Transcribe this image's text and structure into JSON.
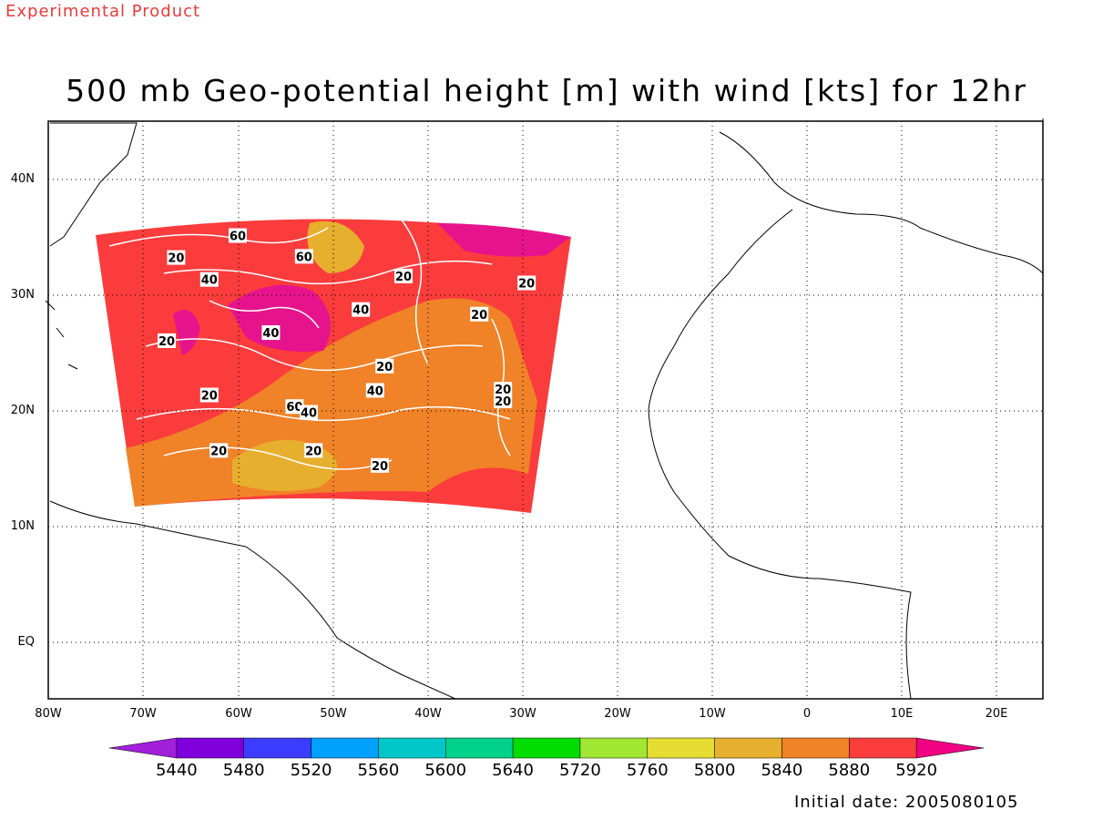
{
  "header": {
    "tag": "Experimental Product",
    "title": "500 mb Geo-potential height [m] with wind [kts] for 12hr"
  },
  "map": {
    "lat_labels": [
      "40N",
      "30N",
      "20N",
      "10N",
      "EQ"
    ],
    "lon_labels": [
      "80W",
      "70W",
      "60W",
      "50W",
      "40W",
      "30W",
      "20W",
      "10W",
      "0",
      "10E",
      "20E"
    ],
    "grid": true,
    "wind_contour_labels": [
      {
        "text": "20",
        "x": -66.5,
        "y": 33.2
      },
      {
        "text": "60",
        "x": -60.0,
        "y": 35.1
      },
      {
        "text": "60",
        "x": -53.0,
        "y": 33.3
      },
      {
        "text": "40",
        "x": -63.0,
        "y": 31.3
      },
      {
        "text": "20",
        "x": -42.5,
        "y": 31.6
      },
      {
        "text": "20",
        "x": -29.5,
        "y": 31.0
      },
      {
        "text": "40",
        "x": -47.0,
        "y": 28.7
      },
      {
        "text": "20",
        "x": -34.5,
        "y": 28.3
      },
      {
        "text": "20",
        "x": -67.5,
        "y": 26.0
      },
      {
        "text": "40",
        "x": -56.5,
        "y": 26.7
      },
      {
        "text": "20",
        "x": -44.5,
        "y": 23.8
      },
      {
        "text": "40",
        "x": -45.5,
        "y": 21.7
      },
      {
        "text": "20",
        "x": -63.0,
        "y": 21.3
      },
      {
        "text": "60",
        "x": -54.0,
        "y": 20.3
      },
      {
        "text": "40",
        "x": -52.5,
        "y": 19.8
      },
      {
        "text": "20",
        "x": -32.0,
        "y": 21.8
      },
      {
        "text": "20",
        "x": -32.0,
        "y": 20.8
      },
      {
        "text": "20",
        "x": -62.0,
        "y": 16.5
      },
      {
        "text": "20",
        "x": -52.0,
        "y": 16.5
      },
      {
        "text": "20",
        "x": -45.0,
        "y": 15.2
      }
    ]
  },
  "colorbar": {
    "levels": [
      "5440",
      "5480",
      "5520",
      "5560",
      "5600",
      "5640",
      "5720",
      "5760",
      "5800",
      "5840",
      "5880",
      "5920"
    ],
    "colors": [
      "#a11fdb",
      "#7f00dc",
      "#3c3cff",
      "#00a0ff",
      "#00c8c8",
      "#00d28c",
      "#00dc00",
      "#a0e632",
      "#e6dc32",
      "#e6af2d",
      "#f08228",
      "#fa3c3c",
      "#f00082"
    ]
  },
  "footer": {
    "initial_date": "Initial date: 2005080105"
  }
}
